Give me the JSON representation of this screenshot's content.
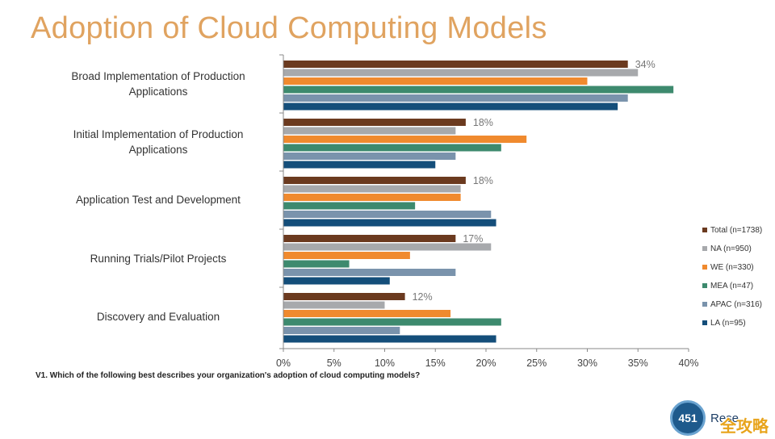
{
  "chart_data": {
    "type": "bar",
    "orientation": "horizontal",
    "title": "Adoption of Cloud Computing Models",
    "footnote": "V1.  Which of the following best describes your organization's adoption of cloud computing models?",
    "categories": [
      "Broad Implementation of Production Applications",
      "Initial Implementation of Production Applications",
      "Application Test and Development",
      "Running Trials/Pilot Projects",
      "Discovery and Evaluation"
    ],
    "category_lines": [
      [
        "Broad Implementation of Production",
        "Applications"
      ],
      [
        "Initial Implementation of Production",
        "Applications"
      ],
      [
        "Application Test and Development"
      ],
      [
        "Running Trials/Pilot Projects"
      ],
      [
        "Discovery and Evaluation"
      ]
    ],
    "series": [
      {
        "name": "Total (n=1738)",
        "color": "#6b3a1f",
        "values": [
          34,
          18,
          18,
          17,
          12
        ]
      },
      {
        "name": "NA (n=950)",
        "color": "#a7a9ac",
        "values": [
          35,
          17,
          17.5,
          20.5,
          10
        ]
      },
      {
        "name": "WE (n=330)",
        "color": "#f08a2e",
        "values": [
          30,
          24,
          17.5,
          12.5,
          16.5
        ]
      },
      {
        "name": "MEA (n=47)",
        "color": "#3d8a6e",
        "values": [
          38.5,
          21.5,
          13,
          6.5,
          21.5
        ]
      },
      {
        "name": "APAC (n=316)",
        "color": "#7a93ac",
        "values": [
          34,
          17,
          20.5,
          17,
          11.5
        ]
      },
      {
        "name": "LA (n=95)",
        "color": "#144e7a",
        "values": [
          33,
          15,
          21,
          10.5,
          21
        ]
      }
    ],
    "total_labels": [
      "34%",
      "18%",
      "18%",
      "17%",
      "12%"
    ],
    "x_ticks": [
      0,
      5,
      10,
      15,
      20,
      25,
      30,
      35,
      40
    ],
    "x_tick_labels": [
      "0%",
      "5%",
      "10%",
      "15%",
      "20%",
      "25%",
      "30%",
      "35%",
      "40%"
    ],
    "xlim": [
      0,
      40
    ],
    "grid": false,
    "legend_position": "right"
  },
  "branding": {
    "logo_text": "451",
    "brand_text": "Rese",
    "watermark_text": "全攻略"
  }
}
